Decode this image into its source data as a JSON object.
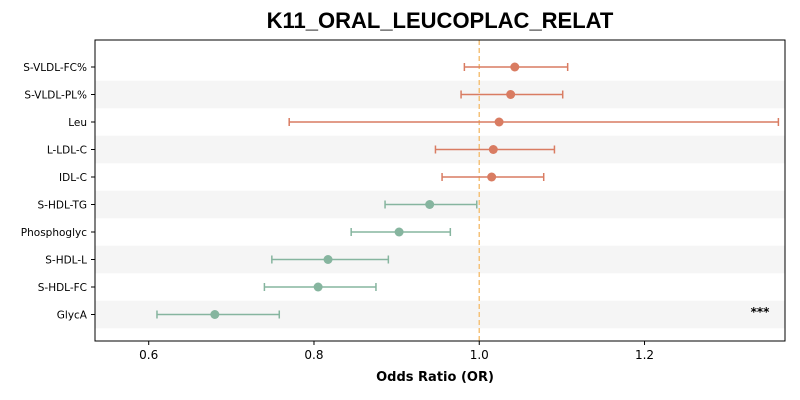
{
  "chart_data": {
    "type": "forest",
    "title": "K11_ORAL_LEUCOPLAC_RELAT",
    "xlabel": "Odds Ratio (OR)",
    "xlim": [
      0.535,
      1.37
    ],
    "xticks": [
      "0.6",
      "0.8",
      "1.0",
      "1.2",
      "1.4"
    ],
    "reference_line": 1.0,
    "significance_label": "***",
    "colors": {
      "positive": "#d97c62",
      "negative": "#86b59f",
      "reference": "#f5c27a",
      "band": "#f5f5f5"
    },
    "rows": [
      {
        "label": "S-VLDL-FC%",
        "or": 1.043,
        "lo": 0.982,
        "hi": 1.107
      },
      {
        "label": "S-VLDL-PL%",
        "or": 1.038,
        "lo": 0.978,
        "hi": 1.101
      },
      {
        "label": "Leu",
        "or": 1.024,
        "lo": 0.77,
        "hi": 1.362
      },
      {
        "label": "L-LDL-C",
        "or": 1.017,
        "lo": 0.947,
        "hi": 1.091
      },
      {
        "label": "IDL-C",
        "or": 1.015,
        "lo": 0.955,
        "hi": 1.078
      },
      {
        "label": "S-HDL-TG",
        "or": 0.94,
        "lo": 0.886,
        "hi": 0.997
      },
      {
        "label": "Phosphoglyc",
        "or": 0.903,
        "lo": 0.845,
        "hi": 0.965
      },
      {
        "label": "S-HDL-L",
        "or": 0.817,
        "lo": 0.749,
        "hi": 0.89
      },
      {
        "label": "S-HDL-FC",
        "or": 0.805,
        "lo": 0.74,
        "hi": 0.875
      },
      {
        "label": "GlycA",
        "or": 0.68,
        "lo": 0.61,
        "hi": 0.758
      }
    ]
  }
}
